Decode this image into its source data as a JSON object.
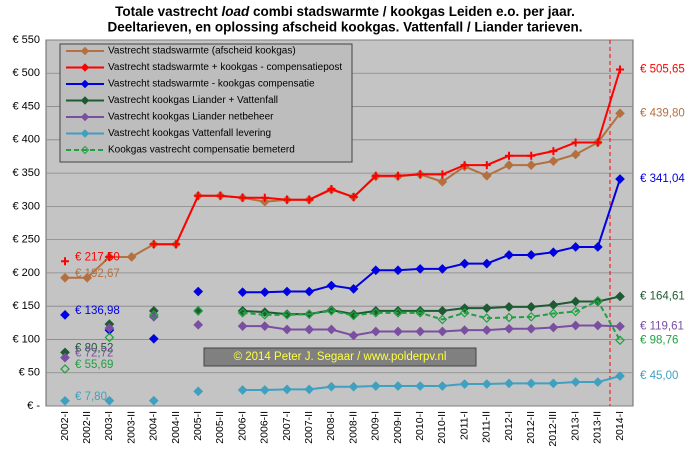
{
  "chart_data": {
    "type": "line",
    "title": {
      "line1": [
        "Totale vastrecht ",
        "load",
        " combi stadswarmte / kookgas Leiden e.o. per jaar."
      ],
      "line2": "Deeltarieven, en oplossing afscheid kookgas. Vattenfall / Liander tarieven."
    },
    "annotation": "© 2014 Peter J. Segaar / www.polderpv.nl",
    "categories": [
      "2002-I",
      "2002-II",
      "2003-I",
      "2003-II",
      "2004-I",
      "2004-II",
      "2005-I",
      "2005-II",
      "2006-I",
      "2006-II",
      "2007-I",
      "2007-II",
      "2008-I",
      "2008-II",
      "2009-I",
      "2009-II",
      "2010-I",
      "2010-II",
      "2011-I",
      "2011-II",
      "2012-I",
      "2012-II",
      "2012-III",
      "2013-I",
      "2013-II",
      "2014-I"
    ],
    "ylim": [
      0,
      550
    ],
    "yticks": [
      {
        "value": 0,
        "label": "€ -"
      },
      {
        "value": 50,
        "label": "€ 50"
      },
      {
        "value": 100,
        "label": "€ 100"
      },
      {
        "value": 150,
        "label": "€ 150"
      },
      {
        "value": 200,
        "label": "€ 200"
      },
      {
        "value": 250,
        "label": "€ 250"
      },
      {
        "value": 300,
        "label": "€ 300"
      },
      {
        "value": 350,
        "label": "€ 350"
      },
      {
        "value": 400,
        "label": "€ 400"
      },
      {
        "value": 450,
        "label": "€ 450"
      },
      {
        "value": 500,
        "label": "€ 500"
      },
      {
        "value": 550,
        "label": "€ 550"
      }
    ],
    "grid": true,
    "legend": "upper left",
    "series": [
      {
        "name": "Vastrecht stadswarmte (afscheid kookgas)",
        "color": "#b5703f",
        "marker": "diamond",
        "values": [
          192.67,
          192.67,
          224,
          224,
          243,
          243,
          316,
          316,
          313,
          307,
          310,
          310,
          325,
          314,
          345,
          345,
          348,
          337,
          360,
          346,
          362,
          362,
          368,
          378,
          396,
          439.8
        ],
        "value_labels": [
          "€ 192,67",
          null,
          null,
          null,
          null,
          null,
          null,
          null,
          null,
          null,
          null,
          null,
          null,
          null,
          null,
          null,
          null,
          null,
          null,
          null,
          null,
          null,
          null,
          null,
          null,
          "€ 439,80"
        ]
      },
      {
        "name": "Vastrecht stadswarmte + kookgas - compensatiepost",
        "color": "#ff0000",
        "marker": "cross",
        "values": [
          217.5,
          null,
          224,
          null,
          243,
          243,
          316,
          316,
          313,
          313,
          310,
          310,
          326,
          314,
          346,
          346,
          348,
          348,
          362,
          362,
          376,
          376,
          383,
          396,
          396,
          505.65
        ],
        "value_labels": [
          "€ 217,50",
          null,
          null,
          null,
          null,
          null,
          null,
          null,
          null,
          null,
          null,
          null,
          null,
          null,
          null,
          null,
          null,
          null,
          null,
          null,
          null,
          null,
          null,
          null,
          null,
          "€ 505,65"
        ]
      },
      {
        "name": "Vastrecht stadswarmte - kookgas compensatie",
        "color": "#0000e0",
        "marker": "diamond",
        "values": [
          136.98,
          null,
          114,
          null,
          101,
          null,
          172,
          null,
          171,
          171,
          172,
          172,
          181,
          176,
          204,
          204,
          206,
          206,
          214,
          214,
          227,
          227,
          231,
          239,
          239,
          341.04
        ],
        "value_labels": [
          "€ 136,98",
          null,
          null,
          null,
          null,
          null,
          null,
          null,
          null,
          null,
          null,
          null,
          null,
          null,
          null,
          null,
          null,
          null,
          null,
          null,
          null,
          null,
          null,
          null,
          null,
          "€ 341,04"
        ]
      },
      {
        "name": "Vastrecht kookgas Liander + Vattenfall",
        "color": "#1e5a32",
        "marker": "diamond",
        "values": [
          80.52,
          null,
          123,
          null,
          143,
          null,
          143,
          null,
          143,
          141,
          138,
          138,
          144,
          138,
          143,
          143,
          143,
          143,
          147,
          147,
          149,
          149,
          152,
          157,
          157,
          164.61
        ],
        "value_labels": [
          "€ 80,52",
          null,
          null,
          null,
          null,
          null,
          null,
          null,
          null,
          null,
          null,
          null,
          null,
          null,
          null,
          null,
          null,
          null,
          null,
          null,
          null,
          null,
          null,
          null,
          null,
          "€ 164,61"
        ]
      },
      {
        "name": "Vastrecht kookgas Liander netbeheer",
        "color": "#7b4fa0",
        "marker": "diamond",
        "values": [
          72.72,
          null,
          117,
          null,
          134,
          null,
          122,
          null,
          120,
          120,
          115,
          115,
          115,
          106,
          112,
          112,
          112,
          112,
          114,
          114,
          116,
          116,
          118,
          121,
          121,
          119.61
        ],
        "value_labels": [
          "€ 72,72",
          null,
          null,
          null,
          null,
          null,
          null,
          null,
          null,
          null,
          null,
          null,
          null,
          null,
          null,
          null,
          null,
          null,
          null,
          null,
          null,
          null,
          null,
          null,
          null,
          "€ 119,61"
        ]
      },
      {
        "name": "Vastrecht kookgas Vattenfall levering",
        "color": "#3fa0c0",
        "marker": "diamond",
        "values": [
          7.8,
          null,
          8,
          null,
          8,
          null,
          22,
          null,
          24,
          24,
          25,
          25,
          29,
          29,
          30,
          30,
          30,
          30,
          33,
          33,
          34,
          34,
          34,
          36,
          36,
          45
        ],
        "value_labels": [
          "€ 7,80",
          null,
          null,
          null,
          null,
          null,
          null,
          null,
          null,
          null,
          null,
          null,
          null,
          null,
          null,
          null,
          null,
          null,
          null,
          null,
          null,
          null,
          null,
          null,
          null,
          "€ 45,00"
        ]
      },
      {
        "name": "Kookgas vastrecht compensatie bemeterd",
        "color": "#20a040",
        "marker": "hollow",
        "dashed": true,
        "values": [
          55.69,
          null,
          103,
          null,
          137,
          null,
          143,
          null,
          140,
          137,
          137,
          138,
          143,
          136,
          140,
          140,
          140,
          130,
          140,
          132,
          133,
          134,
          139,
          142,
          158,
          98.76
        ],
        "value_labels": [
          "€ 55,69",
          null,
          null,
          null,
          null,
          null,
          null,
          null,
          null,
          null,
          null,
          null,
          null,
          null,
          null,
          null,
          null,
          null,
          null,
          null,
          null,
          null,
          null,
          null,
          null,
          "€ 98,76"
        ]
      }
    ]
  }
}
